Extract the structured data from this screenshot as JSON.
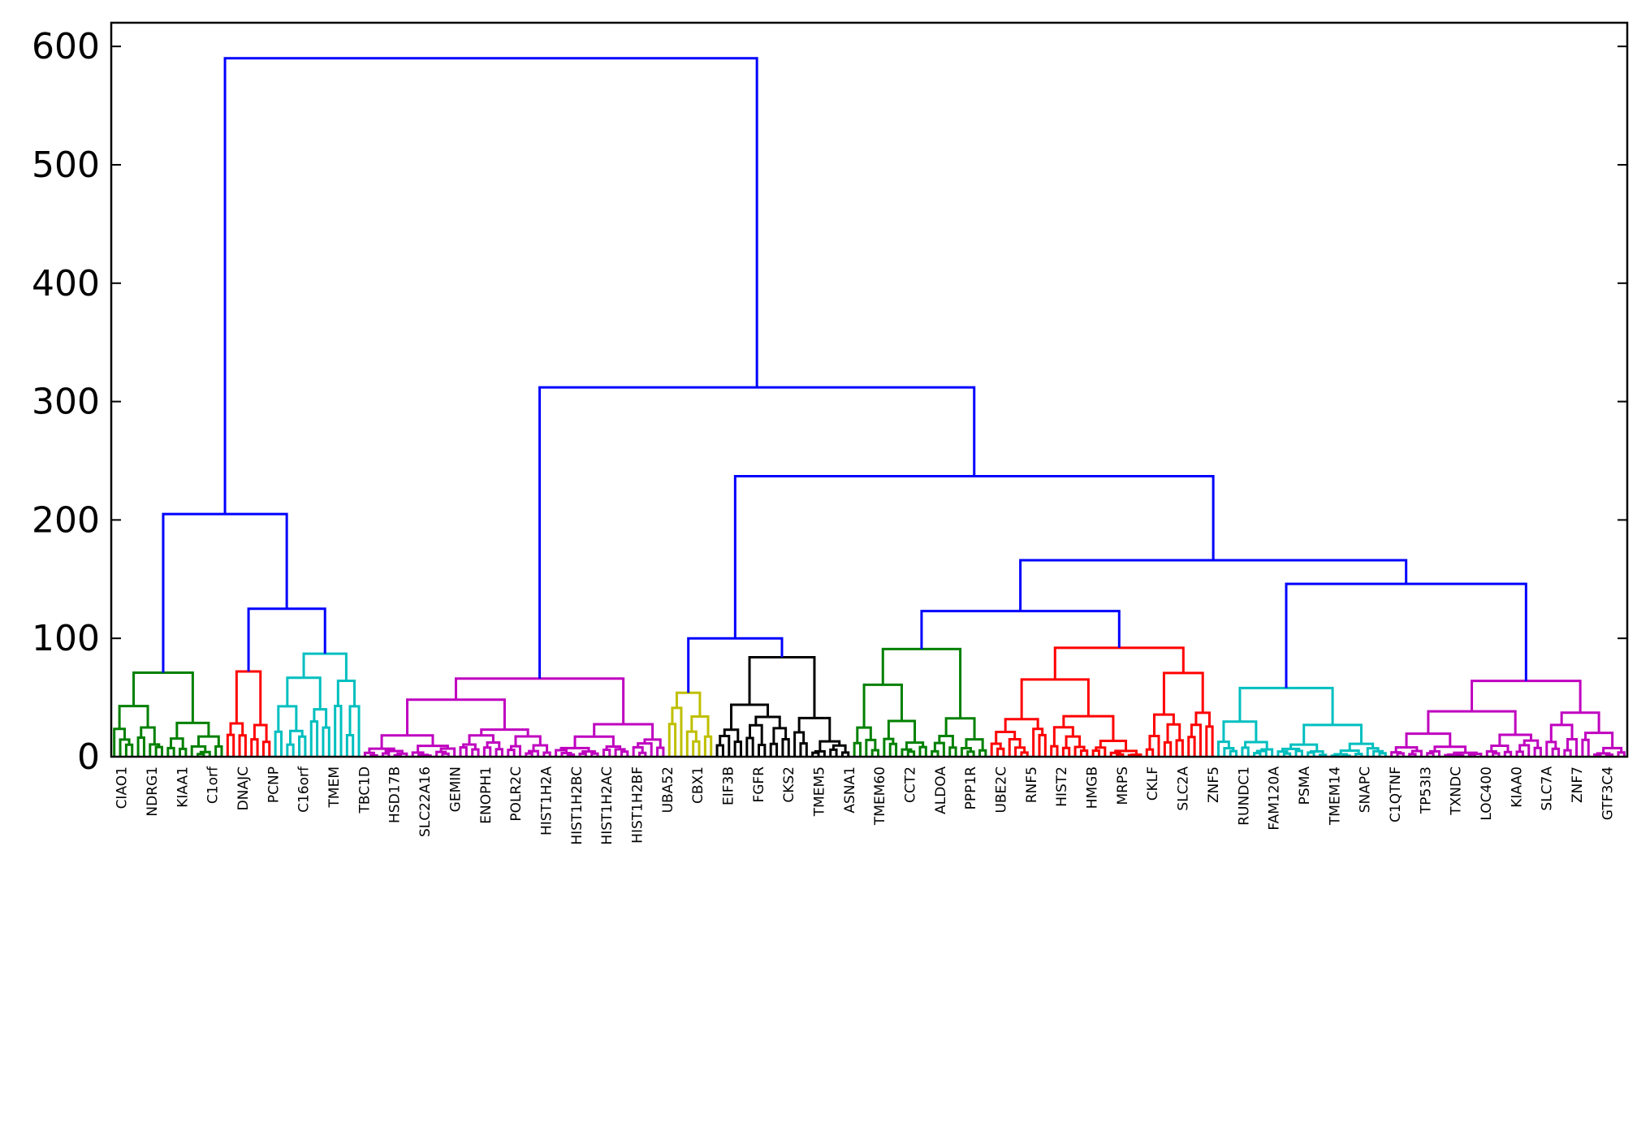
{
  "chart_data": {
    "type": "dendrogram",
    "title": "",
    "xlabel": "",
    "ylabel": "",
    "ylim": [
      0,
      620
    ],
    "yticks": [
      0,
      100,
      200,
      300,
      400,
      500,
      600
    ],
    "ytick_labels": [
      "0",
      "100",
      "200",
      "300",
      "400",
      "500",
      "600"
    ],
    "grid": false,
    "leaf_label_orientation": "vertical",
    "leaf_labels_legible": false,
    "leaf_count": 254,
    "colors": {
      "above_threshold": "#0000ff",
      "green": "#008000",
      "red": "#ff0000",
      "cyan": "#00bfbf",
      "magenta": "#bf00bf",
      "olive": "#bfbf00",
      "black": "#000000"
    },
    "leaf_labels_visible": [
      "CIAO1",
      "NDRG1",
      "KIAA1",
      "C1orf",
      "DNAJC",
      "PCNP",
      "C16orf",
      "TMEM",
      "TBC1D",
      "HSD17B",
      "SLC22A16",
      "GEMIN",
      "ENOPH1",
      "POLR2C",
      "HIST1H2A",
      "HIST1H2BC",
      "HIST1H2AC",
      "HIST1H2BF",
      "UBA52",
      "CBX1",
      "EIF3B",
      "FGFR",
      "CKS2",
      "TMEM5",
      "ASNA1",
      "TMEM60",
      "CCT2",
      "ALDOA",
      "PPP1R",
      "UBE2C",
      "RNF5",
      "HIST2",
      "HMGB",
      "MRPS",
      "CKLF",
      "SLC2A",
      "ZNF5",
      "RUNDC1",
      "FAM120A",
      "PSMA",
      "TMEM14",
      "SNAPC",
      "C1QTNF",
      "TP53I3",
      "TXNDC",
      "LOC400",
      "KIAA0",
      "SLC7A",
      "ZNF7",
      "GTF3C4"
    ],
    "clusters": [
      {
        "color": "green",
        "n_leaves": 19,
        "merge_height": 71
      },
      {
        "color": "red",
        "n_leaves": 8,
        "merge_height": 72
      },
      {
        "color": "cyan",
        "n_leaves": 15,
        "merge_height": 87
      },
      {
        "color": "magenta",
        "n_leaves": 51,
        "merge_height": 66
      },
      {
        "color": "olive",
        "n_leaves": 8,
        "merge_height": 54
      },
      {
        "color": "black",
        "n_leaves": 23,
        "merge_height": 84
      },
      {
        "color": "green",
        "n_leaves": 23,
        "merge_height": 91
      },
      {
        "color": "red",
        "n_leaves": 38,
        "merge_height": 92
      },
      {
        "color": "cyan",
        "n_leaves": 29,
        "merge_height": 58
      },
      {
        "color": "magenta",
        "n_leaves": 40,
        "merge_height": 64
      }
    ],
    "upper_merges": [
      {
        "children": [
          "c2",
          "c3"
        ],
        "height": 125
      },
      {
        "children": [
          "c1",
          "c2+c3"
        ],
        "height": 205
      },
      {
        "children": [
          "c5",
          "c6"
        ],
        "height": 100
      },
      {
        "children": [
          "c7",
          "c8"
        ],
        "height": 123
      },
      {
        "children": [
          "c9",
          "c10"
        ],
        "height": 146
      },
      {
        "children": [
          "c7+c8",
          "c9+c10"
        ],
        "height": 166
      },
      {
        "children": [
          "c5+c6",
          "c7..c10"
        ],
        "height": 237
      },
      {
        "children": [
          "c4",
          "c5..c10"
        ],
        "height": 312
      },
      {
        "children": [
          "c1..c3",
          "c4..c10"
        ],
        "height": 590
      }
    ]
  }
}
